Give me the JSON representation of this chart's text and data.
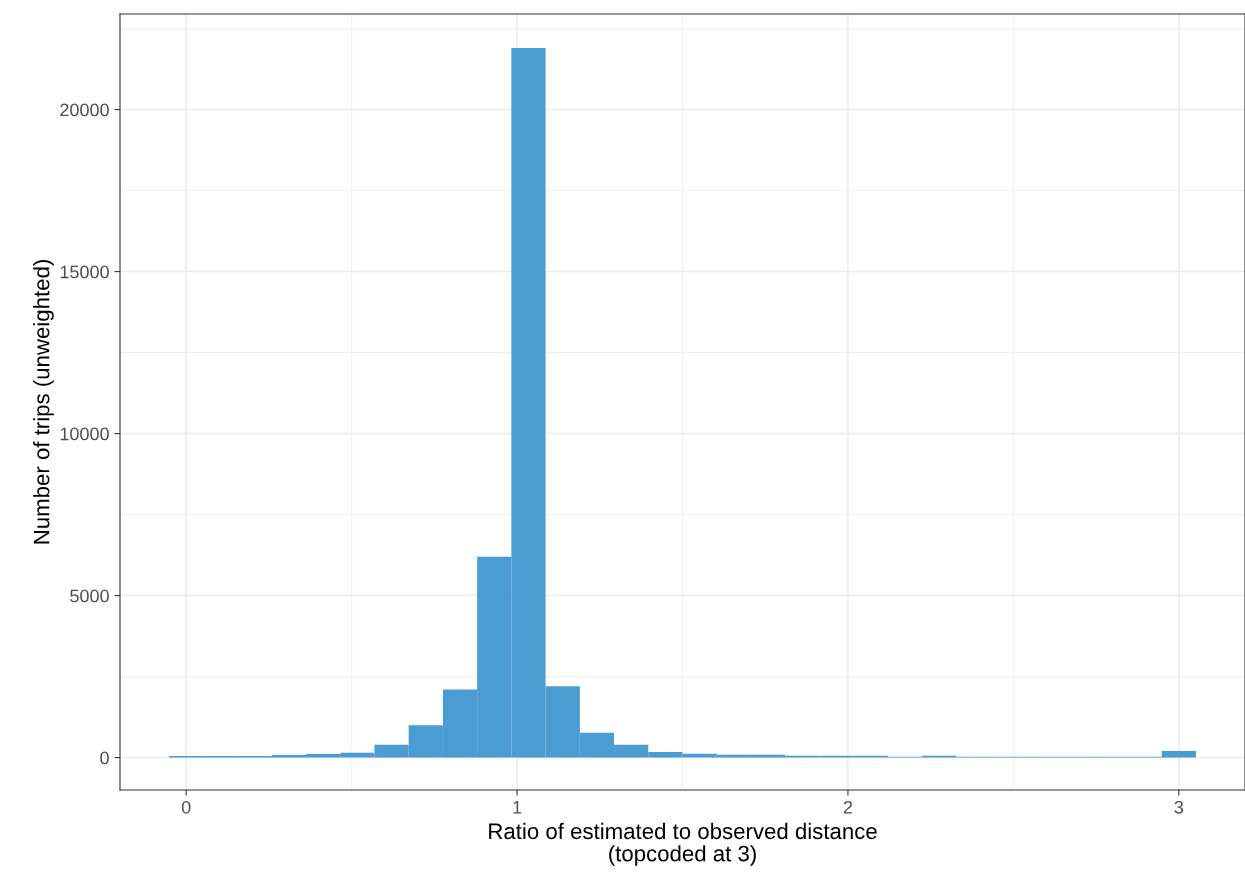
{
  "chart_data": {
    "type": "histogram",
    "xlabel": "Ratio of estimated to observed distance\n(topcoded at 3)",
    "ylabel": "Number of trips (unweighted)",
    "bins": [
      -0.0517,
      0.0517,
      0.1552,
      0.2586,
      0.3621,
      0.4655,
      0.569,
      0.6724,
      0.7759,
      0.8793,
      0.9828,
      1.0862,
      1.1897,
      1.2931,
      1.3966,
      1.5,
      1.6034,
      1.7069,
      1.8103,
      1.9138,
      2.0172,
      2.1207,
      2.2241,
      2.3276,
      2.431,
      2.5345,
      2.6379,
      2.7414,
      2.8448,
      2.9483,
      3.0517
    ],
    "values": [
      50,
      50,
      50,
      80,
      110,
      150,
      400,
      1000,
      2100,
      6200,
      21900,
      2200,
      770,
      400,
      170,
      120,
      90,
      90,
      60,
      60,
      60,
      30,
      60,
      30,
      30,
      30,
      30,
      30,
      30,
      200
    ],
    "color": "#4a9cd3",
    "xlim": [
      -0.2,
      3.2
    ],
    "xticks": [
      0,
      1,
      2,
      3
    ],
    "ylim": [
      -1000,
      22950
    ],
    "yticks": [
      0,
      5000,
      10000,
      15000,
      20000
    ],
    "grid": true
  }
}
